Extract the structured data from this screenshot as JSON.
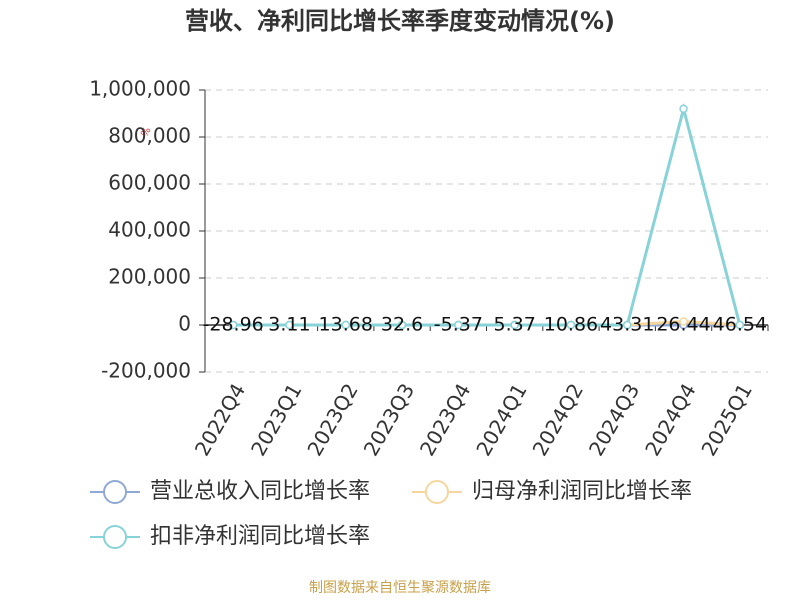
{
  "chart_data": {
    "type": "line",
    "title": "营收、净利同比增长率季度变动情况(%)",
    "y_label": "%",
    "source": "制图数据来自恒生聚源数据库",
    "categories": [
      "2022Q4",
      "2023Q1",
      "2023Q2",
      "2023Q3",
      "2023Q4",
      "2024Q1",
      "2024Q2",
      "2024Q3",
      "2024Q4",
      "2025Q1"
    ],
    "series": [
      {
        "name": "营业总收入同比增长率",
        "color": "#8fa8d6",
        "values": [
          -28.96,
          3.11,
          13.68,
          32.6,
          -5.37,
          5.37,
          10.86,
          43.31,
          26.44,
          46.54
        ],
        "data_labels": true
      },
      {
        "name": "归母净利润同比增长率",
        "color": "#f5d79e",
        "values": [
          -30,
          60,
          20,
          100,
          -40,
          10,
          80,
          200,
          15000,
          40
        ]
      },
      {
        "name": "扣非净利润同比增长率",
        "color": "#88d3d8",
        "values": [
          -40,
          -80,
          30,
          150,
          -60,
          20,
          50,
          -20,
          920000,
          30
        ]
      }
    ],
    "ylim": [
      -200000,
      1000000
    ],
    "yticks": [
      {
        "value": -200000,
        "label": "-200,000"
      },
      0,
      {
        "value": 200000,
        "label": "200,000"
      },
      {
        "value": 400000,
        "label": "400,000"
      },
      {
        "value": 600000,
        "label": "600,000"
      },
      {
        "value": 800000,
        "label": "800,000"
      },
      {
        "value": 1000000,
        "label": "1,000,000"
      }
    ],
    "grid": true
  }
}
